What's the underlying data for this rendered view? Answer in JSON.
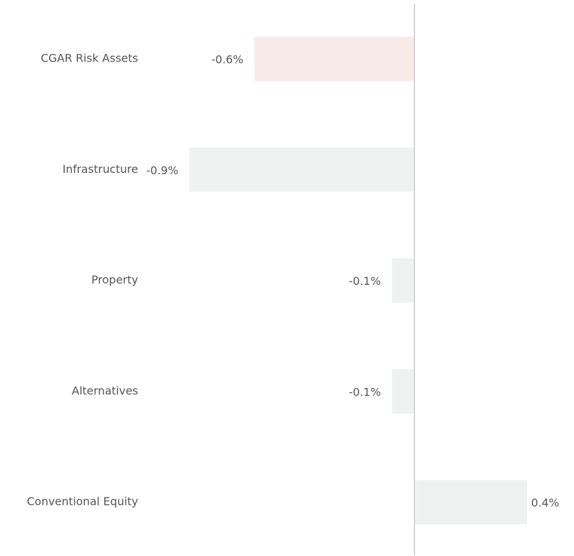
{
  "chart_data": {
    "type": "bar",
    "orientation": "horizontal",
    "categories": [
      "CGAR Risk Assets",
      "Infrastructure",
      "Property",
      "Alternatives",
      "Conventional Equity"
    ],
    "values": [
      -0.64,
      -0.9,
      -0.09,
      -0.09,
      0.45
    ],
    "value_labels": [
      "-0.6%",
      "-0.9%",
      "-0.1%",
      "-0.1%",
      "0.4%"
    ],
    "colors": [
      "#f9eaea",
      "#f0f1f1",
      "#f0f1f1",
      "#f0f1f1",
      "#f0f1f1"
    ]
  }
}
